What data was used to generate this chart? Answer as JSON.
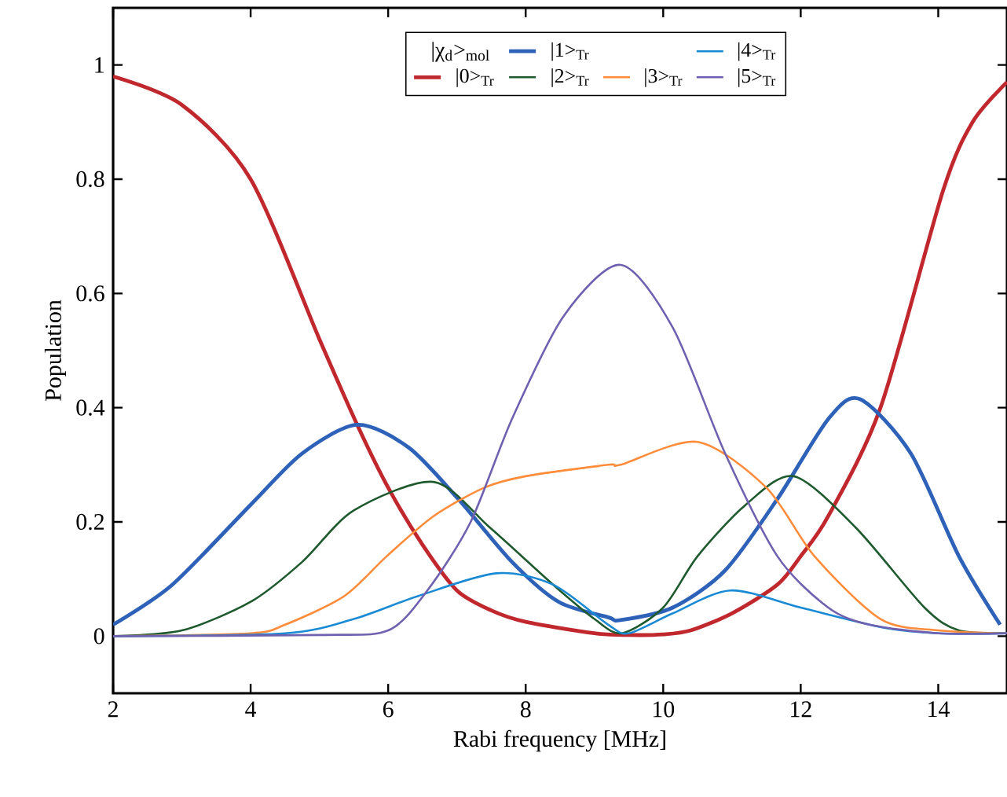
{
  "chart_data": {
    "type": "line",
    "xlabel": "Rabi frequency [MHz]",
    "ylabel": "Population",
    "legend_title": "|χ$_{d}$>$_{mol}$",
    "xlim": [
      2,
      15
    ],
    "ylim": [
      -0.1,
      1.1
    ],
    "xticks": [
      2,
      4,
      6,
      8,
      10,
      12,
      14
    ],
    "yticks": [
      0,
      0.2,
      0.4,
      0.6,
      0.8,
      1
    ],
    "grid": false,
    "legend": "top",
    "series": [
      {
        "name": "|0>$_{Tr}$",
        "color": "#c0282d",
        "x": [
          2,
          3,
          4,
          5,
          5.55,
          6,
          6.5,
          7,
          7.5,
          8,
          9,
          9.5,
          10,
          10.4,
          11,
          11.66,
          12,
          12.4,
          13.16,
          14.07,
          14.5,
          15
        ],
        "values": [
          0.98,
          0.93,
          0.8,
          0.52,
          0.37,
          0.26,
          0.16,
          0.08,
          0.045,
          0.025,
          0.005,
          0.002,
          0.003,
          0.01,
          0.04,
          0.09,
          0.14,
          0.21,
          0.4,
          0.78,
          0.9,
          0.97
        ]
      },
      {
        "name": "|1>$_{Tr}$",
        "color": "#2e62b8",
        "x": [
          2,
          2.86,
          4,
          4.75,
          5.55,
          6.3,
          7.02,
          7.8,
          8.48,
          9.2,
          9.38,
          10.14,
          10.9,
          11.66,
          12.4,
          12.86,
          13.6,
          14.3,
          14.9
        ],
        "values": [
          0.02,
          0.09,
          0.23,
          0.32,
          0.37,
          0.33,
          0.24,
          0.13,
          0.06,
          0.033,
          0.028,
          0.05,
          0.115,
          0.24,
          0.38,
          0.415,
          0.32,
          0.14,
          0.02
        ]
      },
      {
        "name": "|2>$_{Tr}$",
        "color": "#1e5a2e",
        "x": [
          2,
          3,
          4,
          4.75,
          5.5,
          6.66,
          7.48,
          8.4,
          9,
          9.4,
          10,
          10.5,
          11.2,
          11.9,
          12.8,
          13.8,
          14.3,
          15
        ],
        "values": [
          0,
          0.01,
          0.06,
          0.13,
          0.22,
          0.27,
          0.19,
          0.09,
          0.03,
          0.005,
          0.05,
          0.14,
          0.23,
          0.28,
          0.19,
          0.05,
          0.01,
          0.005
        ]
      },
      {
        "name": "|3>$_{Tr}$",
        "color": "#ff8c3a",
        "x": [
          2,
          4,
          4.5,
          5.36,
          5.98,
          6.66,
          7.4,
          8,
          9.2,
          9.38,
          10.5,
          11.5,
          12.2,
          13.16,
          14,
          15
        ],
        "values": [
          0,
          0.005,
          0.02,
          0.07,
          0.14,
          0.21,
          0.26,
          0.28,
          0.3,
          0.3,
          0.34,
          0.26,
          0.14,
          0.03,
          0.01,
          0.005
        ]
      },
      {
        "name": "|4>$_{Tr}$",
        "color": "#1a8ad4",
        "x": [
          2,
          4.5,
          5.5,
          6.43,
          7.57,
          8.4,
          9.2,
          9.5,
          10.14,
          10.98,
          12,
          13.2,
          14,
          15
        ],
        "values": [
          0,
          0.005,
          0.03,
          0.07,
          0.11,
          0.09,
          0.02,
          0.005,
          0.04,
          0.08,
          0.05,
          0.015,
          0.005,
          0.005
        ]
      },
      {
        "name": "|5>$_{Tr}$",
        "color": "#7060b0",
        "x": [
          2,
          5,
          6,
          6.57,
          7.2,
          7.8,
          8.55,
          9.38,
          10.14,
          10.9,
          11.66,
          12.4,
          13,
          14,
          15
        ],
        "values": [
          0,
          0.002,
          0.01,
          0.08,
          0.2,
          0.38,
          0.56,
          0.65,
          0.54,
          0.32,
          0.14,
          0.05,
          0.02,
          0.005,
          0.005
        ]
      }
    ]
  }
}
